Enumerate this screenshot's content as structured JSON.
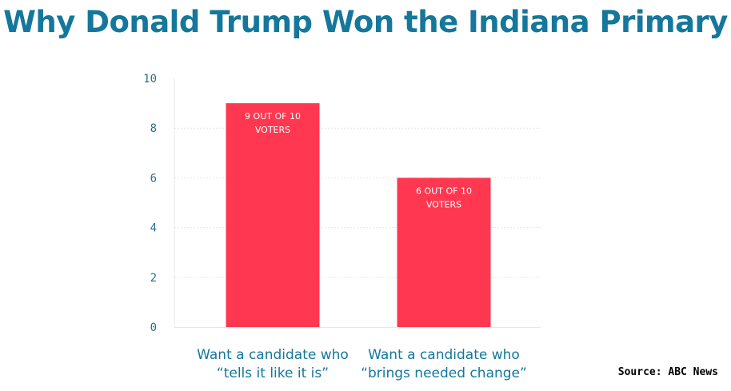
{
  "title": "Why Donald Trump Won the Indiana Primary",
  "source": "Source: ABC News",
  "colors": {
    "bar": "#ff3750",
    "title": "#14779b",
    "axis_text": "#2a6f8f",
    "gridline": "#e6e6e6"
  },
  "chart_data": {
    "type": "bar",
    "title": "Why Donald Trump Won the Indiana Primary",
    "categories": [
      [
        "Want a candidate who",
        "“tells it like it is”"
      ],
      [
        "Want a candidate who",
        "“brings needed change”"
      ]
    ],
    "values": [
      9,
      6
    ],
    "data_labels": [
      [
        "9 OUT OF 10",
        "VOTERS"
      ],
      [
        "6 OUT OF 10",
        "VOTERS"
      ]
    ],
    "ylim": [
      0,
      10
    ],
    "yticks": [
      0,
      2,
      4,
      6,
      8,
      10
    ],
    "grid": true,
    "xlabel": "",
    "ylabel": ""
  }
}
